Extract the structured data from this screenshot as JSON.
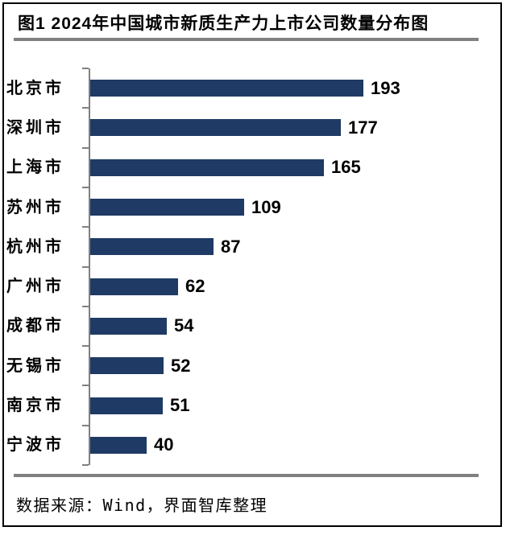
{
  "figure": {
    "title": "图1 2024年中国城市新质生产力上市公司数量分布图",
    "source": "数据来源：Wind，界面智库整理"
  },
  "colors": {
    "bar": "#1F3A64",
    "axis": "#808080",
    "divider": "#808080",
    "frame": "#000000",
    "background": "#FFFFFF",
    "text": "#000000"
  },
  "chart_data": {
    "type": "bar",
    "orientation": "horizontal",
    "title": "图1 2024年中国城市新质生产力上市公司数量分布图",
    "categories": [
      "北京市",
      "深圳市",
      "上海市",
      "苏州市",
      "杭州市",
      "广州市",
      "成都市",
      "无锡市",
      "南京市",
      "宁波市"
    ],
    "values": [
      193,
      177,
      165,
      109,
      87,
      62,
      54,
      52,
      51,
      40
    ],
    "data_labels": true,
    "grid": false,
    "legend": false,
    "xlabel": "",
    "ylabel": ""
  }
}
